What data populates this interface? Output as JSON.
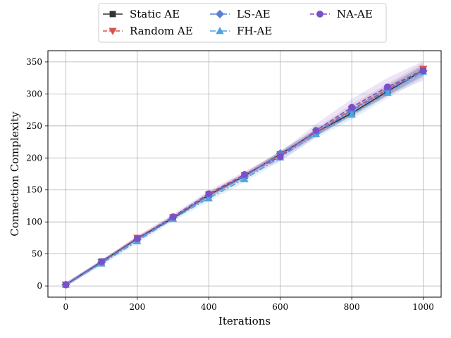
{
  "chart_data": {
    "type": "line",
    "title": "",
    "xlabel": "Iterations",
    "ylabel": "Connection Complexity",
    "xlim": [
      -50,
      1050
    ],
    "ylim": [
      -17.5,
      367.5
    ],
    "xticks": [
      0,
      200,
      400,
      600,
      800,
      1000
    ],
    "yticks": [
      0,
      50,
      100,
      150,
      200,
      250,
      300,
      350
    ],
    "grid": true,
    "legend_position": "top-center",
    "x": [
      0,
      100,
      200,
      300,
      400,
      500,
      600,
      700,
      800,
      900,
      1000
    ],
    "series": [
      {
        "name": "Static AE",
        "color": "#333333",
        "marker": "square",
        "linestyle": "solid",
        "values": [
          2,
          38,
          74,
          106,
          142,
          172,
          206,
          240,
          270,
          304,
          337
        ],
        "band": [
          3,
          3,
          3,
          3,
          4,
          4,
          4,
          5,
          6,
          7,
          8
        ]
      },
      {
        "name": "Random AE",
        "color": "#d9534f",
        "marker": "triangle-down",
        "linestyle": "dashed",
        "values": [
          2,
          37,
          75,
          107,
          143,
          173,
          205,
          240,
          276,
          307,
          339
        ],
        "band": [
          3,
          3,
          3,
          4,
          4,
          4,
          5,
          6,
          8,
          9,
          10
        ]
      },
      {
        "name": "LS-AE",
        "color": "#5a7fd6",
        "marker": "diamond",
        "linestyle": "dashdot",
        "values": [
          2,
          37,
          73,
          107,
          141,
          171,
          207,
          239,
          274,
          306,
          336
        ],
        "band": [
          3,
          3,
          3,
          3,
          4,
          4,
          5,
          5,
          7,
          8,
          9
        ]
      },
      {
        "name": "FH-AE",
        "color": "#4fa3e0",
        "marker": "triangle-up",
        "linestyle": "dashdot",
        "values": [
          2,
          35,
          70,
          105,
          137,
          167,
          201,
          237,
          268,
          302,
          335
        ],
        "band": [
          3,
          3,
          4,
          4,
          5,
          5,
          6,
          6,
          8,
          9,
          10
        ]
      },
      {
        "name": "NA-AE",
        "color": "#7b4fc9",
        "marker": "circle",
        "linestyle": "dashed",
        "values": [
          2,
          38,
          74,
          108,
          144,
          174,
          202,
          243,
          279,
          311,
          336
        ],
        "band": [
          3,
          3,
          4,
          4,
          5,
          5,
          7,
          10,
          13,
          14,
          15
        ]
      }
    ]
  }
}
